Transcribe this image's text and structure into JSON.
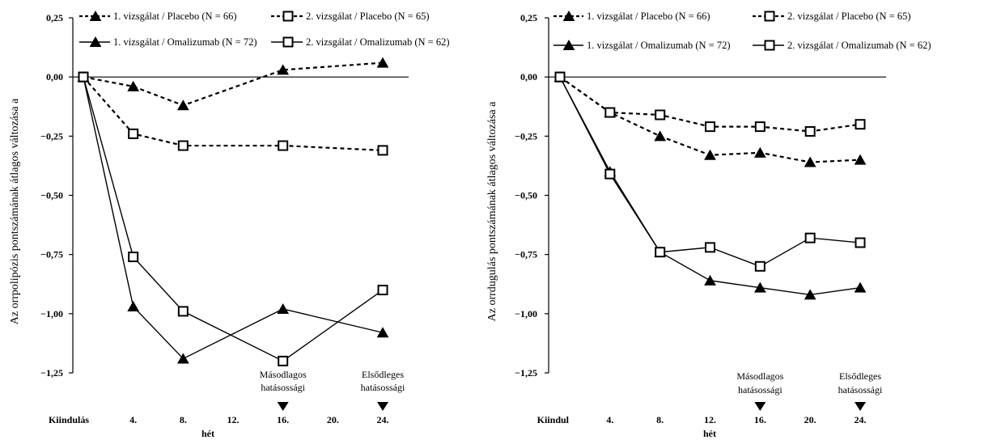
{
  "chart_data": [
    {
      "type": "line",
      "ylabel": "Az orrpolipózis pontszámának átlagos változása a",
      "xlabel": "hét",
      "ylim": [
        -1.25,
        0.25
      ],
      "yticks": [
        "0,25",
        "0,00",
        "−0,25",
        "−0,50",
        "−0,75",
        "−1,00",
        "−1,25"
      ],
      "xticks": [
        "Kiindulás",
        "4.",
        "8.",
        "12.",
        "16.",
        "20.",
        "24."
      ],
      "annotations": [
        {
          "label_lines": [
            "Másodlagos",
            "hatásossági"
          ],
          "at_week": 16
        },
        {
          "label_lines": [
            "Elsődleges",
            "hatásossági"
          ],
          "at_week": 24
        }
      ],
      "series": [
        {
          "name": "1. vizsgálat / Placebo (N = 66)",
          "style": "dashed",
          "marker": "triangle",
          "weeks": [
            0,
            4,
            8,
            16,
            24
          ],
          "values": [
            0,
            -0.04,
            -0.12,
            0.03,
            0.06
          ]
        },
        {
          "name": "2. vizsgálat / Placebo (N = 65)",
          "style": "dashed",
          "marker": "square",
          "weeks": [
            0,
            4,
            8,
            16,
            24
          ],
          "values": [
            0,
            -0.24,
            -0.29,
            -0.29,
            -0.31
          ]
        },
        {
          "name": "1. vizsgálat / Omalizumab (N = 72)",
          "style": "solid",
          "marker": "triangle",
          "weeks": [
            0,
            4,
            8,
            16,
            24
          ],
          "values": [
            0,
            -0.97,
            -1.19,
            -0.98,
            -1.08
          ]
        },
        {
          "name": "2. vizsgálat / Omalizumab (N = 62)",
          "style": "solid",
          "marker": "square",
          "weeks": [
            0,
            4,
            8,
            16,
            24
          ],
          "values": [
            0,
            -0.76,
            -0.99,
            -1.2,
            -0.9
          ]
        }
      ]
    },
    {
      "type": "line",
      "ylabel": "Az orrdugulás pontszámának átlagos változása a",
      "xlabel": "hét",
      "ylim": [
        -1.25,
        0.25
      ],
      "yticks": [
        "0,25",
        "0,00",
        "−0,25",
        "−0,50",
        "−0,75",
        "−1,00",
        "−1,25"
      ],
      "xticks": [
        "Kiindul",
        "4.",
        "8.",
        "12.",
        "16.",
        "20.",
        "24."
      ],
      "annotations": [
        {
          "label_lines": [
            "Másodlagos",
            "hatásossági"
          ],
          "at_week": 16
        },
        {
          "label_lines": [
            "Elsődleges",
            "hatásossági"
          ],
          "at_week": 24
        }
      ],
      "series": [
        {
          "name": "1. vizsgálat / Placebo (N = 66)",
          "style": "dashed",
          "marker": "triangle",
          "weeks": [
            0,
            4,
            8,
            12,
            16,
            20,
            24
          ],
          "values": [
            0,
            -0.15,
            -0.25,
            -0.33,
            -0.32,
            -0.36,
            -0.35
          ]
        },
        {
          "name": "2. vizsgálat / Placebo (N = 65)",
          "style": "dashed",
          "marker": "square",
          "weeks": [
            0,
            4,
            8,
            12,
            16,
            20,
            24
          ],
          "values": [
            0,
            -0.15,
            -0.16,
            -0.21,
            -0.21,
            -0.23,
            -0.2
          ]
        },
        {
          "name": "1. vizsgálat / Omalizumab (N = 72)",
          "style": "solid",
          "marker": "triangle",
          "weeks": [
            0,
            4,
            8,
            12,
            16,
            20,
            24
          ],
          "values": [
            0,
            -0.4,
            -0.74,
            -0.86,
            -0.89,
            -0.92,
            -0.89
          ]
        },
        {
          "name": "2. vizsgálat / Omalizumab (N = 62)",
          "style": "solid",
          "marker": "square",
          "weeks": [
            0,
            4,
            8,
            12,
            16,
            20,
            24
          ],
          "values": [
            0,
            -0.41,
            -0.74,
            -0.72,
            -0.8,
            -0.68,
            -0.7
          ]
        }
      ]
    }
  ]
}
